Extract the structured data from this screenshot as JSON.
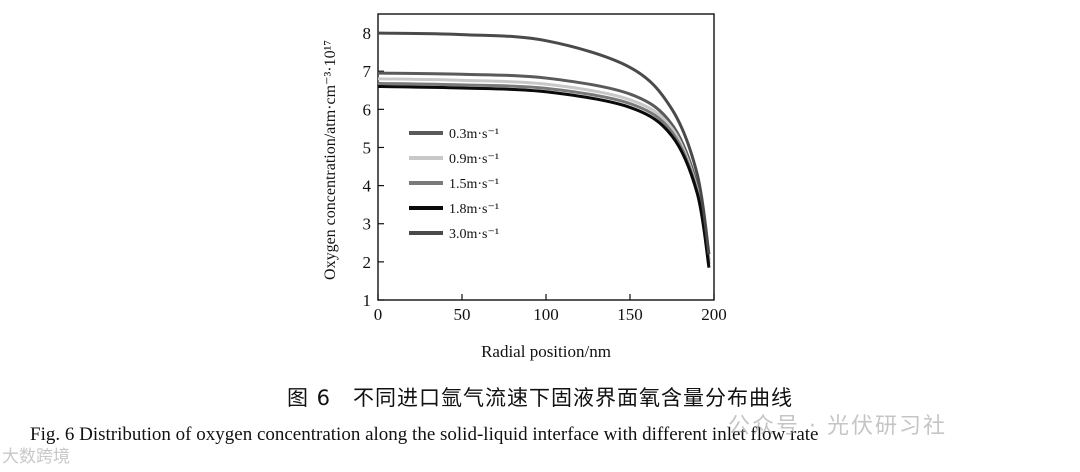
{
  "chart_data": {
    "type": "line",
    "xlabel": "Radial position/nm",
    "ylabel": "Oxygen concentration/atm·cm⁻³·10¹⁷",
    "xlim": [
      0,
      200
    ],
    "ylim": [
      1,
      8.5
    ],
    "xticks": [
      0,
      50,
      100,
      150,
      200
    ],
    "yticks": [
      1,
      2,
      3,
      4,
      5,
      6,
      7,
      8
    ],
    "grid": false,
    "legend_position": "center-left",
    "series": [
      {
        "name": "0.3m·s⁻¹",
        "color": "#5a5a5a",
        "x": [
          0,
          50,
          100,
          150,
          175,
          190,
          197
        ],
        "y": [
          6.95,
          6.92,
          6.82,
          6.4,
          5.6,
          4.0,
          2.05
        ]
      },
      {
        "name": "0.9m·s⁻¹",
        "color": "#c8c8c8",
        "x": [
          0,
          50,
          100,
          150,
          175,
          190,
          197
        ],
        "y": [
          6.8,
          6.76,
          6.66,
          6.25,
          5.5,
          3.9,
          2.0
        ]
      },
      {
        "name": "1.5m·s⁻¹",
        "color": "#7a7a7a",
        "x": [
          0,
          50,
          100,
          150,
          175,
          190,
          197
        ],
        "y": [
          6.68,
          6.64,
          6.55,
          6.15,
          5.4,
          3.85,
          1.95
        ]
      },
      {
        "name": "1.8m·s⁻¹",
        "color": "#0a0a0a",
        "x": [
          0,
          50,
          100,
          150,
          175,
          190,
          197
        ],
        "y": [
          6.6,
          6.56,
          6.46,
          6.05,
          5.3,
          3.8,
          1.85
        ]
      },
      {
        "name": "3.0m·s⁻¹",
        "color": "#4a4a4a",
        "x": [
          0,
          50,
          100,
          150,
          175,
          190,
          197
        ],
        "y": [
          8.0,
          7.96,
          7.8,
          7.1,
          6.0,
          4.3,
          2.2
        ]
      }
    ]
  },
  "caption": {
    "cn": "图 6　不同进口氩气流速下固液界面氧含量分布曲线",
    "en": "Fig. 6   Distribution of oxygen concentration along the solid-liquid interface with different inlet flow rate"
  },
  "watermark": {
    "wechat": "公众号 · 光伏研习社",
    "site": "大数跨境"
  }
}
